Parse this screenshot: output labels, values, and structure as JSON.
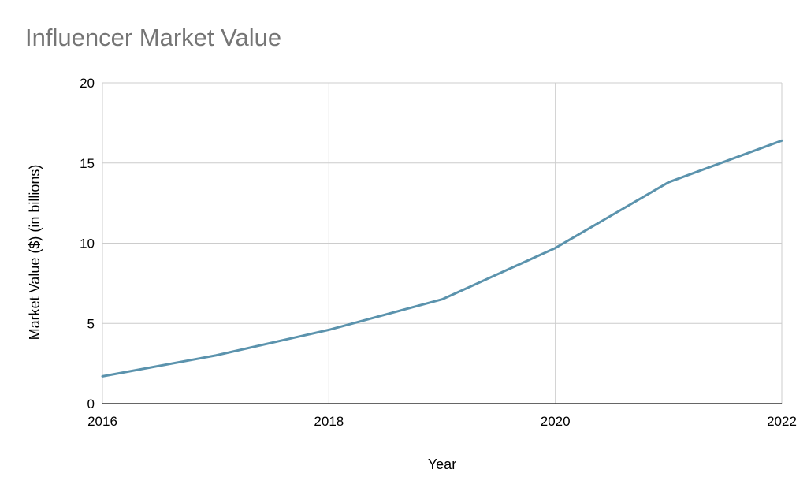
{
  "chart_data": {
    "type": "line",
    "title": "Influencer Market Value",
    "xlabel": "Year",
    "ylabel": "Market Value ($) (in billions)",
    "xlim": [
      2016,
      2022
    ],
    "ylim": [
      0,
      20
    ],
    "x_ticks": [
      "2016",
      "2018",
      "2020",
      "2022"
    ],
    "y_ticks": [
      "0",
      "5",
      "10",
      "15",
      "20"
    ],
    "grid": true,
    "legend": "none",
    "series": [
      {
        "color": "#5b93ad",
        "x": [
          2016,
          2017,
          2018,
          2019,
          2020,
          2021,
          2022
        ],
        "values": [
          1.7,
          3.0,
          4.6,
          6.5,
          9.7,
          13.8,
          16.4
        ]
      }
    ]
  }
}
